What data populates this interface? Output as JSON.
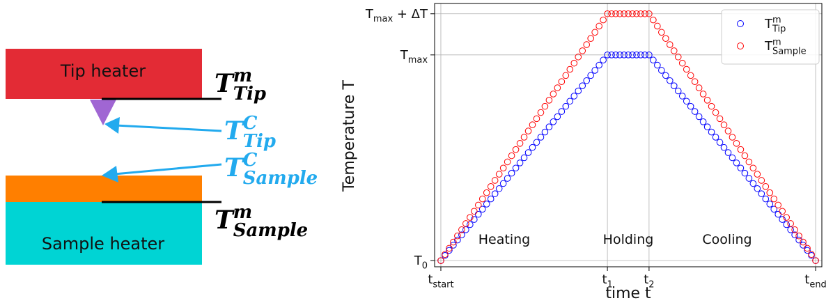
{
  "diagram": {
    "blocks": [
      "Tip heater",
      "Sample heater"
    ],
    "labels": [
      {
        "base": "T",
        "sup": "m",
        "sub": "Tip"
      },
      {
        "base": "T",
        "sup": "C",
        "sub": "Tip"
      },
      {
        "base": "T",
        "sup": "C",
        "sub": "Sample"
      },
      {
        "base": "T",
        "sup": "m",
        "sub": "Sample"
      }
    ]
  },
  "chart_data": {
    "type": "scatter",
    "xlabel": "time t",
    "ylabel": "Temperature T",
    "annotations": [
      "Heating",
      "Holding",
      "Cooling"
    ],
    "xlim": [
      -1.5,
      91.5
    ],
    "ylim": [
      -3,
      125
    ],
    "xticks": [
      {
        "value": 0,
        "label": "t",
        "sub": "start"
      },
      {
        "value": 40,
        "label": "t",
        "sub": "1"
      },
      {
        "value": 50,
        "label": "t",
        "sub": "2"
      },
      {
        "value": 90,
        "label": "t",
        "sub": "end"
      }
    ],
    "yticks": [
      {
        "value": 0,
        "label": "T",
        "sub": "0"
      },
      {
        "value": 100,
        "label": "T",
        "sub": "max"
      },
      {
        "value": 120,
        "label": "T",
        "sub": "max",
        "suffix": " + ΔT"
      }
    ],
    "grid": true,
    "legend": "upper right",
    "x": [
      0,
      1,
      2,
      3,
      4,
      5,
      6,
      7,
      8,
      9,
      10,
      11,
      12,
      13,
      14,
      15,
      16,
      17,
      18,
      19,
      20,
      21,
      22,
      23,
      24,
      25,
      26,
      27,
      28,
      29,
      30,
      31,
      32,
      33,
      34,
      35,
      36,
      37,
      38,
      39,
      40,
      41,
      42,
      43,
      44,
      45,
      46,
      47,
      48,
      49,
      50,
      51,
      52,
      53,
      54,
      55,
      56,
      57,
      58,
      59,
      60,
      61,
      62,
      63,
      64,
      65,
      66,
      67,
      68,
      69,
      70,
      71,
      72,
      73,
      74,
      75,
      76,
      77,
      78,
      79,
      80,
      81,
      82,
      83,
      84,
      85,
      86,
      87,
      88,
      89,
      90
    ],
    "series": [
      {
        "name": "T",
        "sup": "m",
        "sub": "Tip",
        "color": "#0000ff",
        "values": [
          0,
          2.5,
          5,
          7.5,
          10,
          12.5,
          15,
          17.5,
          20,
          22.5,
          25,
          27.5,
          30,
          32.5,
          35,
          37.5,
          40,
          42.5,
          45,
          47.5,
          50,
          52.5,
          55,
          57.5,
          60,
          62.5,
          65,
          67.5,
          70,
          72.5,
          75,
          77.5,
          80,
          82.5,
          85,
          87.5,
          90,
          92.5,
          95,
          97.5,
          100,
          100,
          100,
          100,
          100,
          100,
          100,
          100,
          100,
          100,
          100,
          97.5,
          95,
          92.5,
          90,
          87.5,
          85,
          82.5,
          80,
          77.5,
          75,
          72.5,
          70,
          67.5,
          65,
          62.5,
          60,
          57.5,
          55,
          52.5,
          50,
          47.5,
          45,
          42.5,
          40,
          37.5,
          35,
          32.5,
          30,
          27.5,
          25,
          22.5,
          20,
          17.5,
          15,
          12.5,
          10,
          7.5,
          5,
          2.5,
          0
        ]
      },
      {
        "name": "T",
        "sup": "m",
        "sub": "Sample",
        "color": "#ff0000",
        "values": [
          0,
          3,
          6,
          9,
          12,
          15,
          18,
          21,
          24,
          27,
          30,
          33,
          36,
          39,
          42,
          45,
          48,
          51,
          54,
          57,
          60,
          63,
          66,
          69,
          72,
          75,
          78,
          81,
          84,
          87,
          90,
          93,
          96,
          99,
          102,
          105,
          108,
          111,
          114,
          117,
          120,
          120,
          120,
          120,
          120,
          120,
          120,
          120,
          120,
          120,
          120,
          117,
          114,
          111,
          108,
          105,
          102,
          99,
          96,
          93,
          90,
          87,
          84,
          81,
          78,
          75,
          72,
          69,
          66,
          63,
          60,
          57,
          54,
          51,
          48,
          45,
          42,
          39,
          36,
          33,
          30,
          27,
          24,
          21,
          18,
          15,
          12,
          9,
          6,
          3,
          0
        ]
      }
    ]
  }
}
